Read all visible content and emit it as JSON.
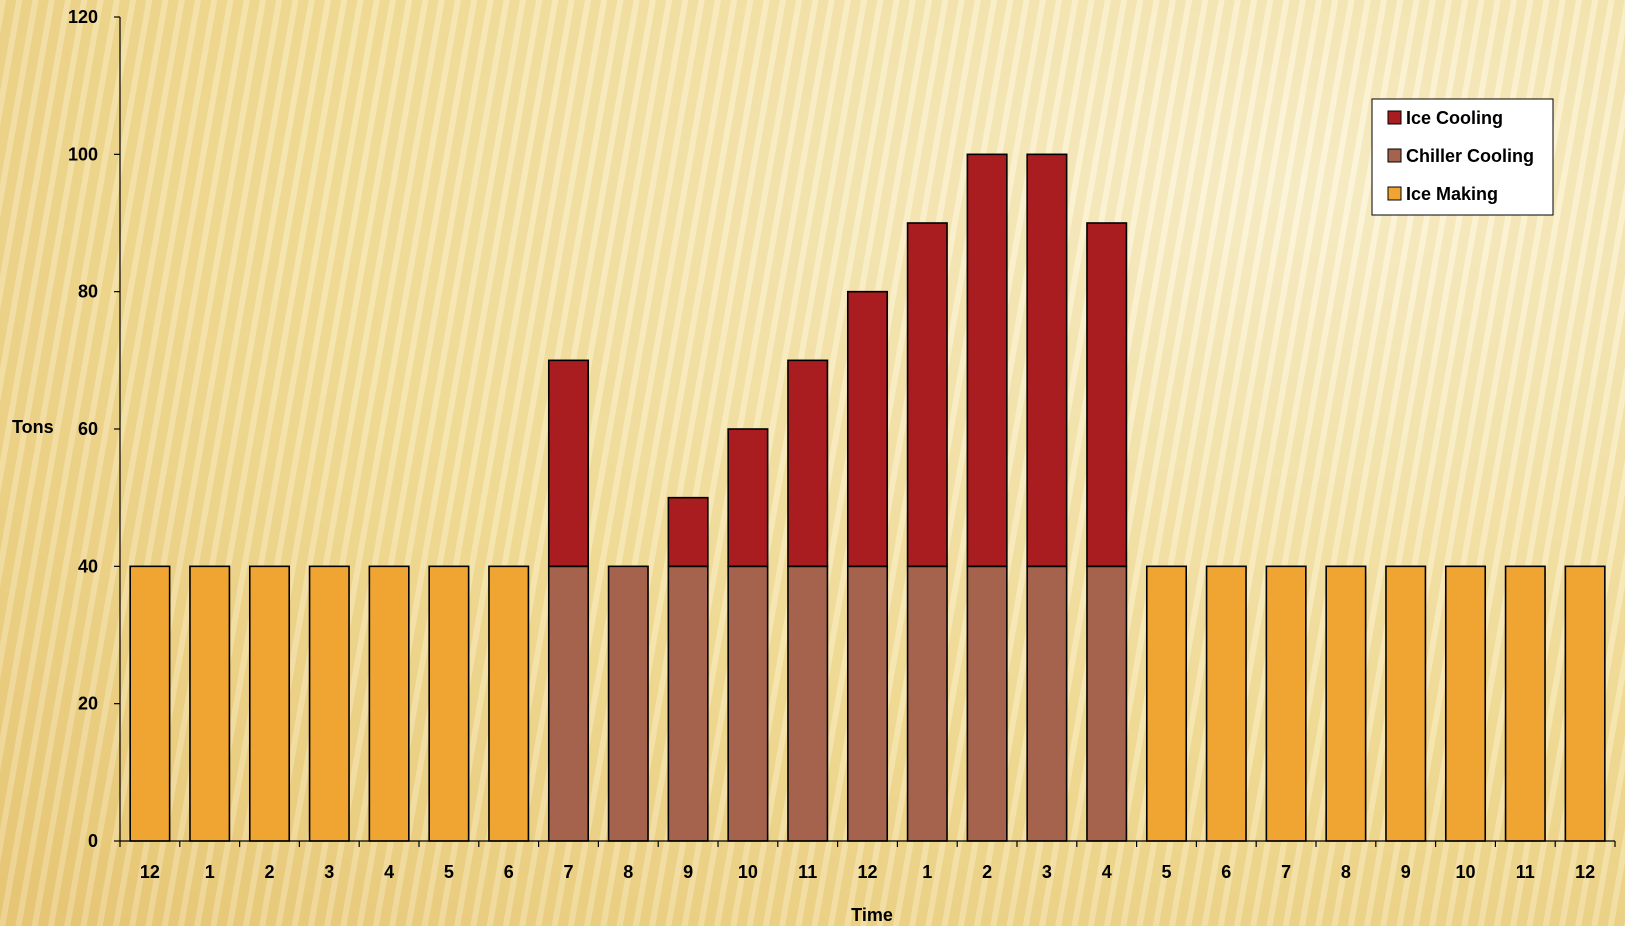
{
  "chart_data": {
    "type": "bar",
    "stacked": true,
    "title": "",
    "xlabel": "Time",
    "ylabel": "Tons",
    "ylim": [
      0,
      120
    ],
    "yticks": [
      0,
      20,
      40,
      60,
      80,
      100,
      120
    ],
    "grid": false,
    "legend_position": "top-right",
    "categories": [
      "12",
      "1",
      "2",
      "3",
      "4",
      "5",
      "6",
      "7",
      "8",
      "9",
      "10",
      "11",
      "12",
      "1",
      "2",
      "3",
      "4",
      "5",
      "6",
      "7",
      "8",
      "9",
      "10",
      "11",
      "12"
    ],
    "series": [
      {
        "name": "Ice Making",
        "color": "#f0a431",
        "values": [
          40,
          40,
          40,
          40,
          40,
          40,
          40,
          0,
          0,
          0,
          0,
          0,
          0,
          0,
          0,
          0,
          0,
          40,
          40,
          40,
          40,
          40,
          40,
          40,
          40
        ]
      },
      {
        "name": "Chiller Cooling",
        "color": "#a5634d",
        "values": [
          0,
          0,
          0,
          0,
          0,
          0,
          0,
          40,
          40,
          40,
          40,
          40,
          40,
          40,
          40,
          40,
          40,
          0,
          0,
          0,
          0,
          0,
          0,
          0,
          0
        ]
      },
      {
        "name": "Ice Cooling",
        "color": "#a91c1f",
        "values": [
          0,
          0,
          0,
          0,
          0,
          0,
          0,
          30,
          0,
          10,
          20,
          30,
          40,
          50,
          60,
          60,
          50,
          0,
          0,
          0,
          0,
          0,
          0,
          0,
          0
        ]
      }
    ],
    "legend_order": [
      "Ice Cooling",
      "Chiller Cooling",
      "Ice Making"
    ]
  }
}
